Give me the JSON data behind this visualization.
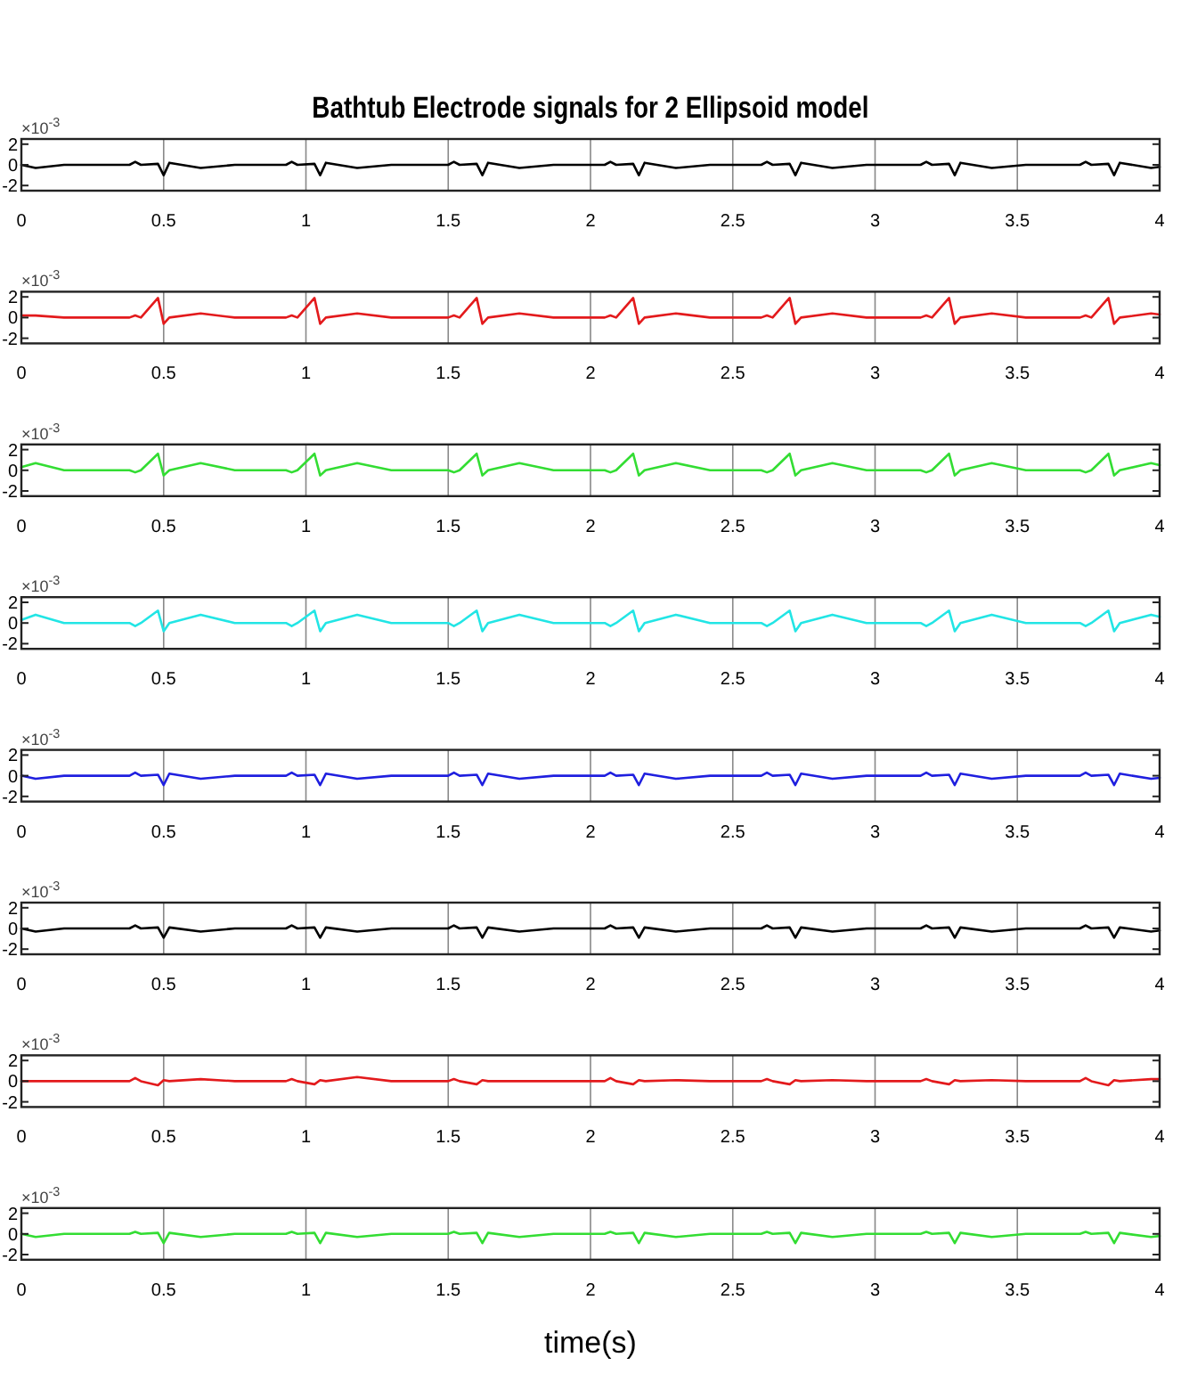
{
  "chart_data": [
    {
      "type": "line",
      "title": "Bathtub Electrode signals for 2 Ellipsoid model",
      "annotations": [
        "×10$^{-3}$"
      ],
      "grid": "x",
      "xlim": [
        0,
        4
      ],
      "xticks": [
        0,
        0.5,
        1,
        1.5,
        2,
        2.5,
        3,
        3.5,
        4
      ],
      "ylim": [
        -2.5,
        2.5
      ],
      "yticks": [
        -2,
        0,
        2
      ],
      "x": [
        0,
        0.05,
        0.15,
        0.38,
        0.4,
        0.42,
        0.48,
        0.5,
        0.52,
        0.63,
        0.75,
        0.93,
        0.95,
        0.97,
        1.03,
        1.05,
        1.07,
        1.18,
        1.3,
        1.5,
        1.52,
        1.54,
        1.6,
        1.62,
        1.64,
        1.75,
        1.87,
        2.05,
        2.07,
        2.09,
        2.15,
        2.17,
        2.19,
        2.3,
        2.42,
        2.6,
        2.62,
        2.64,
        2.7,
        2.72,
        2.74,
        2.85,
        2.97,
        3.16,
        3.18,
        3.2,
        3.26,
        3.28,
        3.3,
        3.41,
        3.53,
        3.72,
        3.74,
        3.76,
        3.82,
        3.84,
        3.86,
        3.97,
        4.0
      ],
      "series": [
        {
          "color": "#000000",
          "values": [
            0,
            -0.3,
            0,
            0,
            0.3,
            0,
            0.1,
            -1.0,
            0.2,
            -0.3,
            0,
            0,
            0.3,
            0,
            0.1,
            -1.0,
            0.2,
            -0.3,
            0,
            0,
            0.3,
            0,
            0.1,
            -1.0,
            0.2,
            -0.3,
            0,
            0,
            0.3,
            0,
            0.1,
            -1.0,
            0.2,
            -0.3,
            0,
            0,
            0.3,
            0,
            0.1,
            -1.0,
            0.2,
            -0.3,
            0,
            0,
            0.3,
            0,
            0.1,
            -1.0,
            0.2,
            -0.3,
            0,
            0,
            0.3,
            0,
            0.1,
            -1.0,
            0.2,
            -0.3,
            -0.2
          ]
        }
      ]
    },
    {
      "type": "line",
      "annotations": [
        "×10$^{-3}$"
      ],
      "grid": "x",
      "xlim": [
        0,
        4
      ],
      "xticks": [
        0,
        0.5,
        1,
        1.5,
        2,
        2.5,
        3,
        3.5,
        4
      ],
      "ylim": [
        -2.5,
        2.5
      ],
      "yticks": [
        -2,
        0,
        2
      ],
      "x": [
        0,
        0.05,
        0.15,
        0.38,
        0.4,
        0.42,
        0.48,
        0.5,
        0.52,
        0.63,
        0.75,
        0.93,
        0.95,
        0.97,
        1.03,
        1.05,
        1.07,
        1.18,
        1.3,
        1.5,
        1.52,
        1.54,
        1.6,
        1.62,
        1.64,
        1.75,
        1.87,
        2.05,
        2.07,
        2.09,
        2.15,
        2.17,
        2.19,
        2.3,
        2.42,
        2.6,
        2.62,
        2.64,
        2.7,
        2.72,
        2.74,
        2.85,
        2.97,
        3.16,
        3.18,
        3.2,
        3.26,
        3.28,
        3.3,
        3.41,
        3.53,
        3.72,
        3.74,
        3.76,
        3.82,
        3.84,
        3.86,
        3.97,
        4.0
      ],
      "series": [
        {
          "color": "#e31a1c",
          "values": [
            0.2,
            0.2,
            0,
            0,
            0.2,
            0,
            1.9,
            -0.6,
            0,
            0.4,
            0,
            0,
            0.2,
            0,
            1.9,
            -0.6,
            0,
            0.4,
            0,
            0,
            0.2,
            0,
            1.9,
            -0.6,
            0,
            0.4,
            0,
            0,
            0.2,
            0,
            1.9,
            -0.6,
            0,
            0.4,
            0,
            0,
            0.2,
            0,
            1.9,
            -0.6,
            0,
            0.4,
            0,
            0,
            0.2,
            0,
            1.9,
            -0.6,
            0,
            0.4,
            0,
            0,
            0.2,
            0,
            1.9,
            -0.6,
            0,
            0.4,
            0.3
          ]
        }
      ]
    },
    {
      "type": "line",
      "annotations": [
        "×10$^{-3}$"
      ],
      "grid": "x",
      "xlim": [
        0,
        4
      ],
      "xticks": [
        0,
        0.5,
        1,
        1.5,
        2,
        2.5,
        3,
        3.5,
        4
      ],
      "ylim": [
        -2.5,
        2.5
      ],
      "yticks": [
        -2,
        0,
        2
      ],
      "x": [
        0,
        0.05,
        0.15,
        0.38,
        0.4,
        0.42,
        0.48,
        0.5,
        0.52,
        0.63,
        0.75,
        0.93,
        0.95,
        0.97,
        1.03,
        1.05,
        1.07,
        1.18,
        1.3,
        1.5,
        1.52,
        1.54,
        1.6,
        1.62,
        1.64,
        1.75,
        1.87,
        2.05,
        2.07,
        2.09,
        2.15,
        2.17,
        2.19,
        2.3,
        2.42,
        2.6,
        2.62,
        2.64,
        2.7,
        2.72,
        2.74,
        2.85,
        2.97,
        3.16,
        3.18,
        3.2,
        3.26,
        3.28,
        3.3,
        3.41,
        3.53,
        3.72,
        3.74,
        3.76,
        3.82,
        3.84,
        3.86,
        3.97,
        4.0
      ],
      "series": [
        {
          "color": "#33dd33",
          "values": [
            0.3,
            0.7,
            0,
            0,
            -0.2,
            0,
            1.6,
            -0.5,
            0,
            0.7,
            0,
            0,
            -0.2,
            0,
            1.6,
            -0.5,
            0,
            0.7,
            0,
            0,
            -0.2,
            0,
            1.6,
            -0.5,
            0,
            0.7,
            0,
            0,
            -0.2,
            0,
            1.6,
            -0.5,
            0,
            0.7,
            0,
            0,
            -0.2,
            0,
            1.6,
            -0.5,
            0,
            0.7,
            0,
            0,
            -0.2,
            0,
            1.6,
            -0.5,
            0,
            0.7,
            0,
            0,
            -0.2,
            0,
            1.6,
            -0.5,
            0,
            0.7,
            0.5
          ]
        }
      ]
    },
    {
      "type": "line",
      "annotations": [
        "×10$^{-3}$"
      ],
      "grid": "x",
      "xlim": [
        0,
        4
      ],
      "xticks": [
        0,
        0.5,
        1,
        1.5,
        2,
        2.5,
        3,
        3.5,
        4
      ],
      "ylim": [
        -2.5,
        2.5
      ],
      "yticks": [
        -2,
        0,
        2
      ],
      "x": [
        0,
        0.05,
        0.15,
        0.38,
        0.4,
        0.42,
        0.48,
        0.5,
        0.52,
        0.63,
        0.75,
        0.93,
        0.95,
        0.97,
        1.03,
        1.05,
        1.07,
        1.18,
        1.3,
        1.5,
        1.52,
        1.54,
        1.6,
        1.62,
        1.64,
        1.75,
        1.87,
        2.05,
        2.07,
        2.09,
        2.15,
        2.17,
        2.19,
        2.3,
        2.42,
        2.6,
        2.62,
        2.64,
        2.7,
        2.72,
        2.74,
        2.85,
        2.97,
        3.16,
        3.18,
        3.2,
        3.26,
        3.28,
        3.3,
        3.41,
        3.53,
        3.72,
        3.74,
        3.76,
        3.82,
        3.84,
        3.86,
        3.97,
        4.0
      ],
      "series": [
        {
          "color": "#22e5e5",
          "values": [
            0.3,
            0.8,
            0,
            0,
            -0.3,
            0,
            1.2,
            -0.8,
            0,
            0.8,
            0,
            0,
            -0.3,
            0,
            1.2,
            -0.8,
            0,
            0.8,
            0,
            0,
            -0.3,
            0,
            1.2,
            -0.8,
            0,
            0.8,
            0,
            0,
            -0.3,
            0,
            1.2,
            -0.8,
            0,
            0.8,
            0,
            0,
            -0.3,
            0,
            1.2,
            -0.8,
            0,
            0.8,
            0,
            0,
            -0.3,
            0,
            1.2,
            -0.8,
            0,
            0.8,
            0,
            0,
            -0.3,
            0,
            1.2,
            -0.8,
            0,
            0.8,
            0.6
          ]
        }
      ]
    },
    {
      "type": "line",
      "annotations": [
        "×10$^{-3}$"
      ],
      "grid": "x",
      "xlim": [
        0,
        4
      ],
      "xticks": [
        0,
        0.5,
        1,
        1.5,
        2,
        2.5,
        3,
        3.5,
        4
      ],
      "ylim": [
        -2.5,
        2.5
      ],
      "yticks": [
        -2,
        0,
        2
      ],
      "x": [
        0,
        0.05,
        0.15,
        0.38,
        0.4,
        0.42,
        0.48,
        0.5,
        0.52,
        0.63,
        0.75,
        0.93,
        0.95,
        0.97,
        1.03,
        1.05,
        1.07,
        1.18,
        1.3,
        1.5,
        1.52,
        1.54,
        1.6,
        1.62,
        1.64,
        1.75,
        1.87,
        2.05,
        2.07,
        2.09,
        2.15,
        2.17,
        2.19,
        2.3,
        2.42,
        2.6,
        2.62,
        2.64,
        2.7,
        2.72,
        2.74,
        2.85,
        2.97,
        3.16,
        3.18,
        3.2,
        3.26,
        3.28,
        3.3,
        3.41,
        3.53,
        3.72,
        3.74,
        3.76,
        3.82,
        3.84,
        3.86,
        3.97,
        4.0
      ],
      "series": [
        {
          "color": "#1f1fdf",
          "values": [
            0,
            -0.3,
            0,
            0,
            0.3,
            0,
            0.1,
            -0.9,
            0.2,
            -0.3,
            0,
            0,
            0.3,
            0,
            0.1,
            -0.9,
            0.2,
            -0.3,
            0,
            0,
            0.3,
            0,
            0.1,
            -0.9,
            0.2,
            -0.3,
            0,
            0,
            0.3,
            0,
            0.1,
            -0.9,
            0.2,
            -0.3,
            0,
            0,
            0.3,
            0,
            0.1,
            -0.9,
            0.2,
            -0.3,
            0,
            0,
            0.3,
            0,
            0.1,
            -0.9,
            0.2,
            -0.3,
            0,
            0,
            0.3,
            0,
            0.1,
            -0.9,
            0.2,
            -0.3,
            -0.2
          ]
        }
      ]
    },
    {
      "type": "line",
      "annotations": [
        "×10$^{-3}$"
      ],
      "grid": "x",
      "xlim": [
        0,
        4
      ],
      "xticks": [
        0,
        0.5,
        1,
        1.5,
        2,
        2.5,
        3,
        3.5,
        4
      ],
      "ylim": [
        -2.5,
        2.5
      ],
      "yticks": [
        -2,
        0,
        2
      ],
      "x": [
        0,
        0.05,
        0.15,
        0.38,
        0.4,
        0.42,
        0.48,
        0.5,
        0.52,
        0.63,
        0.75,
        0.93,
        0.95,
        0.97,
        1.03,
        1.05,
        1.07,
        1.18,
        1.3,
        1.5,
        1.52,
        1.54,
        1.6,
        1.62,
        1.64,
        1.75,
        1.87,
        2.05,
        2.07,
        2.09,
        2.15,
        2.17,
        2.19,
        2.3,
        2.42,
        2.6,
        2.62,
        2.64,
        2.7,
        2.72,
        2.74,
        2.85,
        2.97,
        3.16,
        3.18,
        3.2,
        3.26,
        3.28,
        3.3,
        3.41,
        3.53,
        3.72,
        3.74,
        3.76,
        3.82,
        3.84,
        3.86,
        3.97,
        4.0
      ],
      "series": [
        {
          "color": "#000000",
          "values": [
            0,
            -0.3,
            0,
            0,
            0.3,
            0,
            0.1,
            -0.9,
            0.1,
            -0.3,
            0,
            0,
            0.3,
            0,
            0.1,
            -0.9,
            0.1,
            -0.3,
            0,
            0,
            0.3,
            0,
            0.1,
            -0.9,
            0.1,
            -0.3,
            0,
            0,
            0.3,
            0,
            0.1,
            -0.9,
            0.1,
            -0.3,
            0,
            0,
            0.3,
            0,
            0.1,
            -0.9,
            0.1,
            -0.3,
            0,
            0,
            0.3,
            0,
            0.1,
            -0.9,
            0.1,
            -0.3,
            0,
            0,
            0.3,
            0,
            0.1,
            -0.9,
            0.1,
            -0.3,
            -0.2
          ]
        }
      ]
    },
    {
      "type": "line",
      "annotations": [
        "×10$^{-3}$"
      ],
      "grid": "x",
      "xlim": [
        0,
        4
      ],
      "xticks": [
        0,
        0.5,
        1,
        1.5,
        2,
        2.5,
        3,
        3.5,
        4
      ],
      "ylim": [
        -2.5,
        2.5
      ],
      "yticks": [
        -2,
        0,
        2
      ],
      "x": [
        0,
        0.05,
        0.15,
        0.38,
        0.4,
        0.42,
        0.48,
        0.5,
        0.52,
        0.63,
        0.75,
        0.93,
        0.95,
        0.97,
        1.03,
        1.05,
        1.07,
        1.18,
        1.3,
        1.5,
        1.52,
        1.54,
        1.6,
        1.62,
        1.64,
        1.75,
        1.87,
        2.05,
        2.07,
        2.09,
        2.15,
        2.17,
        2.19,
        2.3,
        2.42,
        2.6,
        2.62,
        2.64,
        2.7,
        2.72,
        2.74,
        2.85,
        2.97,
        3.16,
        3.18,
        3.2,
        3.26,
        3.28,
        3.3,
        3.41,
        3.53,
        3.72,
        3.74,
        3.76,
        3.82,
        3.84,
        3.86,
        3.97,
        4.0
      ],
      "series": [
        {
          "color": "#e31a1c",
          "values": [
            0,
            0,
            0,
            0,
            0.3,
            0,
            -0.4,
            0.1,
            0,
            0.2,
            0,
            0,
            0.2,
            0,
            -0.3,
            0.1,
            0,
            0.4,
            0,
            0,
            0.2,
            0,
            -0.3,
            0.1,
            0,
            0,
            0,
            0,
            0.3,
            0,
            -0.3,
            0.1,
            0,
            0.1,
            0,
            0,
            0.2,
            0,
            -0.3,
            0.1,
            0,
            0.1,
            0,
            0,
            0.2,
            0,
            -0.3,
            0.1,
            0,
            0.1,
            0,
            0,
            0.3,
            0,
            -0.4,
            0.1,
            0,
            0.2,
            0.2
          ]
        }
      ]
    },
    {
      "type": "line",
      "xlabel": "time(s)",
      "annotations": [
        "×10$^{-3}$"
      ],
      "grid": "x",
      "xlim": [
        0,
        4
      ],
      "xticks": [
        0,
        0.5,
        1,
        1.5,
        2,
        2.5,
        3,
        3.5,
        4
      ],
      "ylim": [
        -2.5,
        2.5
      ],
      "yticks": [
        -2,
        0,
        2
      ],
      "x": [
        0,
        0.05,
        0.15,
        0.38,
        0.4,
        0.42,
        0.48,
        0.5,
        0.52,
        0.63,
        0.75,
        0.93,
        0.95,
        0.97,
        1.03,
        1.05,
        1.07,
        1.18,
        1.3,
        1.5,
        1.52,
        1.54,
        1.6,
        1.62,
        1.64,
        1.75,
        1.87,
        2.05,
        2.07,
        2.09,
        2.15,
        2.17,
        2.19,
        2.3,
        2.42,
        2.6,
        2.62,
        2.64,
        2.7,
        2.72,
        2.74,
        2.85,
        2.97,
        3.16,
        3.18,
        3.2,
        3.26,
        3.28,
        3.3,
        3.41,
        3.53,
        3.72,
        3.74,
        3.76,
        3.82,
        3.84,
        3.86,
        3.97,
        4.0
      ],
      "series": [
        {
          "color": "#33dd33",
          "values": [
            0,
            -0.3,
            0,
            0,
            0.2,
            0,
            0.1,
            -0.9,
            0.1,
            -0.3,
            0,
            0,
            0.2,
            0,
            0.1,
            -0.9,
            0.1,
            -0.3,
            0,
            0,
            0.2,
            0,
            0.1,
            -0.9,
            0.1,
            -0.3,
            0,
            0,
            0.2,
            0,
            0.1,
            -0.9,
            0.1,
            -0.3,
            0,
            0,
            0.2,
            0,
            0.1,
            -0.9,
            0.1,
            -0.3,
            0,
            0,
            0.2,
            0,
            0.1,
            -0.9,
            0.1,
            -0.3,
            0,
            0,
            0.2,
            0,
            0.1,
            -0.9,
            0.1,
            -0.3,
            -0.2
          ]
        }
      ]
    }
  ]
}
